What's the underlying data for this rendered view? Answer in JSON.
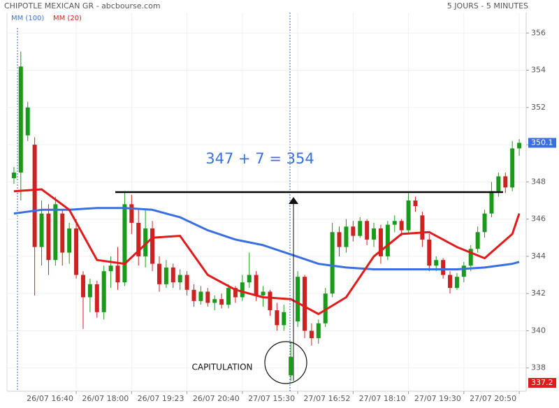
{
  "chart_data": {
    "type": "candlestick",
    "title": "CHIPOTLE MEXICAN GR - abcbourse.com",
    "period": "5 JOURS - 5 MINUTES",
    "annotations": [
      "347 + 7 = 354",
      "CAPITULATION"
    ],
    "resistance_level": 347.45,
    "ylim": [
      336.75,
      357.4
    ],
    "yticks": [
      338,
      340,
      342,
      344,
      346,
      348,
      350,
      352,
      354,
      356
    ],
    "xlim": [
      -1,
      74
    ],
    "xticks": [
      {
        "value": 9,
        "label": "26/07 16:40"
      },
      {
        "value": 17,
        "label": "26/07 18:00"
      },
      {
        "value": 25,
        "label": "26/07 19:23"
      },
      {
        "value": 33,
        "label": "26/07 20:40"
      },
      {
        "value": 41,
        "label": "27/07 15:30"
      },
      {
        "value": 49,
        "label": "27/07 16:52"
      },
      {
        "value": 57,
        "label": "27/07 18:10"
      },
      {
        "value": 65,
        "label": "27/07 19:30"
      },
      {
        "value": 73,
        "label": "27/07 20:50"
      }
    ],
    "up_color": "#1a9a1a",
    "down_color": "#cc2222",
    "candles": [
      [
        348.2,
        348.8,
        347.9,
        348.5
      ],
      [
        348.5,
        355.0,
        347.0,
        354.2
      ],
      [
        350.5,
        352.3,
        350.2,
        352.0
      ],
      [
        350.0,
        350.4,
        341.9,
        344.5
      ],
      [
        344.5,
        347.0,
        343.5,
        346.3
      ],
      [
        346.3,
        346.8,
        343.0,
        343.8
      ],
      [
        343.8,
        347.2,
        343.5,
        346.8
      ],
      [
        346.3,
        346.5,
        343.5,
        344.2
      ],
      [
        344.2,
        345.8,
        343.6,
        345.5
      ],
      [
        345.5,
        346.0,
        342.8,
        343.0
      ],
      [
        343.0,
        343.2,
        340.1,
        341.8
      ],
      [
        341.8,
        342.8,
        341.0,
        342.5
      ],
      [
        342.5,
        342.7,
        340.7,
        341.0
      ],
      [
        341.0,
        343.5,
        340.6,
        343.2
      ],
      [
        343.2,
        344.0,
        342.3,
        343.5
      ],
      [
        343.5,
        344.5,
        342.2,
        342.6
      ],
      [
        342.6,
        347.5,
        342.4,
        346.8
      ],
      [
        346.8,
        347.3,
        345.2,
        345.8
      ],
      [
        345.8,
        346.6,
        343.5,
        344.0
      ],
      [
        344.0,
        346.5,
        343.4,
        345.5
      ],
      [
        345.5,
        345.9,
        343.2,
        343.6
      ],
      [
        343.6,
        344.0,
        342.1,
        342.5
      ],
      [
        342.5,
        343.8,
        342.3,
        343.4
      ],
      [
        343.4,
        343.6,
        342.3,
        342.6
      ],
      [
        342.6,
        343.3,
        342.2,
        343.0
      ],
      [
        343.0,
        343.2,
        341.9,
        342.2
      ],
      [
        342.2,
        342.5,
        341.3,
        341.6
      ],
      [
        341.6,
        342.4,
        341.4,
        342.1
      ],
      [
        342.1,
        342.3,
        341.3,
        341.5
      ],
      [
        341.5,
        341.9,
        341.1,
        341.7
      ],
      [
        341.7,
        342.0,
        341.2,
        341.4
      ],
      [
        341.4,
        342.5,
        341.2,
        342.3
      ],
      [
        342.3,
        342.4,
        341.5,
        341.8
      ],
      [
        341.8,
        343.0,
        341.6,
        342.6
      ],
      [
        342.6,
        344.2,
        342.3,
        343.0
      ],
      [
        343.0,
        343.2,
        341.6,
        341.9
      ],
      [
        341.9,
        342.4,
        341.3,
        342.1
      ],
      [
        342.1,
        342.2,
        340.8,
        341.1
      ],
      [
        341.1,
        341.5,
        340.0,
        340.3
      ],
      [
        340.3,
        341.4,
        340.0,
        341.0
      ],
      [
        337.6,
        339.4,
        337.3,
        338.6
      ],
      [
        340.5,
        343.2,
        340.2,
        342.9
      ],
      [
        342.9,
        343.0,
        339.6,
        340.0
      ],
      [
        340.0,
        340.4,
        339.2,
        339.6
      ],
      [
        339.6,
        340.6,
        339.3,
        340.4
      ],
      [
        340.4,
        342.3,
        340.2,
        342.0
      ],
      [
        342.0,
        345.8,
        341.8,
        345.3
      ],
      [
        345.3,
        345.6,
        344.0,
        344.5
      ],
      [
        344.5,
        346.0,
        344.2,
        345.6
      ],
      [
        345.6,
        345.9,
        344.8,
        345.1
      ],
      [
        345.1,
        346.1,
        345.0,
        345.9
      ],
      [
        345.9,
        346.0,
        344.6,
        344.9
      ],
      [
        344.9,
        345.8,
        344.5,
        345.5
      ],
      [
        345.5,
        345.7,
        343.6,
        344.0
      ],
      [
        344.0,
        345.9,
        343.8,
        345.7
      ],
      [
        345.7,
        346.2,
        345.3,
        345.9
      ],
      [
        345.9,
        346.0,
        345.1,
        345.4
      ],
      [
        345.4,
        347.4,
        345.2,
        347.0
      ],
      [
        347.0,
        347.2,
        346.4,
        346.7
      ],
      [
        346.2,
        346.4,
        344.5,
        344.9
      ],
      [
        344.9,
        345.2,
        343.2,
        343.5
      ],
      [
        343.5,
        344.0,
        343.2,
        343.8
      ],
      [
        343.8,
        343.9,
        342.8,
        343.0
      ],
      [
        343.0,
        343.2,
        342.0,
        342.3
      ],
      [
        342.3,
        343.1,
        342.2,
        342.9
      ],
      [
        342.9,
        343.7,
        342.6,
        343.5
      ],
      [
        343.5,
        344.6,
        343.2,
        344.4
      ],
      [
        344.4,
        345.6,
        344.2,
        345.3
      ],
      [
        345.3,
        346.5,
        345.0,
        346.3
      ],
      [
        346.3,
        348.0,
        346.1,
        347.5
      ],
      [
        347.5,
        348.5,
        347.2,
        348.3
      ],
      [
        348.3,
        348.5,
        347.4,
        347.7
      ],
      [
        347.7,
        350.2,
        347.5,
        349.8
      ],
      [
        349.8,
        350.3,
        349.4,
        350.1
      ]
    ],
    "series": [
      {
        "name": "MM (100)",
        "color": "#3a6fe0",
        "x": [
          0,
          4,
          8,
          12,
          16,
          20,
          24,
          28,
          32,
          36,
          40,
          44,
          48,
          52,
          56,
          60,
          64,
          68,
          72,
          73
        ],
        "values": [
          346.3,
          346.5,
          346.5,
          346.6,
          346.6,
          346.5,
          346.1,
          345.4,
          344.9,
          344.6,
          344.1,
          343.6,
          343.4,
          343.3,
          343.3,
          343.3,
          343.3,
          343.4,
          343.6,
          343.7
        ]
      },
      {
        "name": "MM (20)",
        "color": "#e01b1b",
        "x": [
          0,
          4,
          8,
          12,
          16,
          20,
          24,
          28,
          32,
          36,
          40,
          44,
          48,
          52,
          56,
          60,
          64,
          68,
          72,
          73
        ],
        "values": [
          347.5,
          347.6,
          346.5,
          343.8,
          343.6,
          345.0,
          345.1,
          343.0,
          342.2,
          341.8,
          341.7,
          340.9,
          341.8,
          344.0,
          345.2,
          345.3,
          344.5,
          343.9,
          345.2,
          346.3
        ]
      }
    ],
    "price_labels": [
      {
        "value": 350.1,
        "color": "#3a6fe0"
      },
      {
        "value": 337.2,
        "color": "#e01b1b"
      }
    ]
  }
}
